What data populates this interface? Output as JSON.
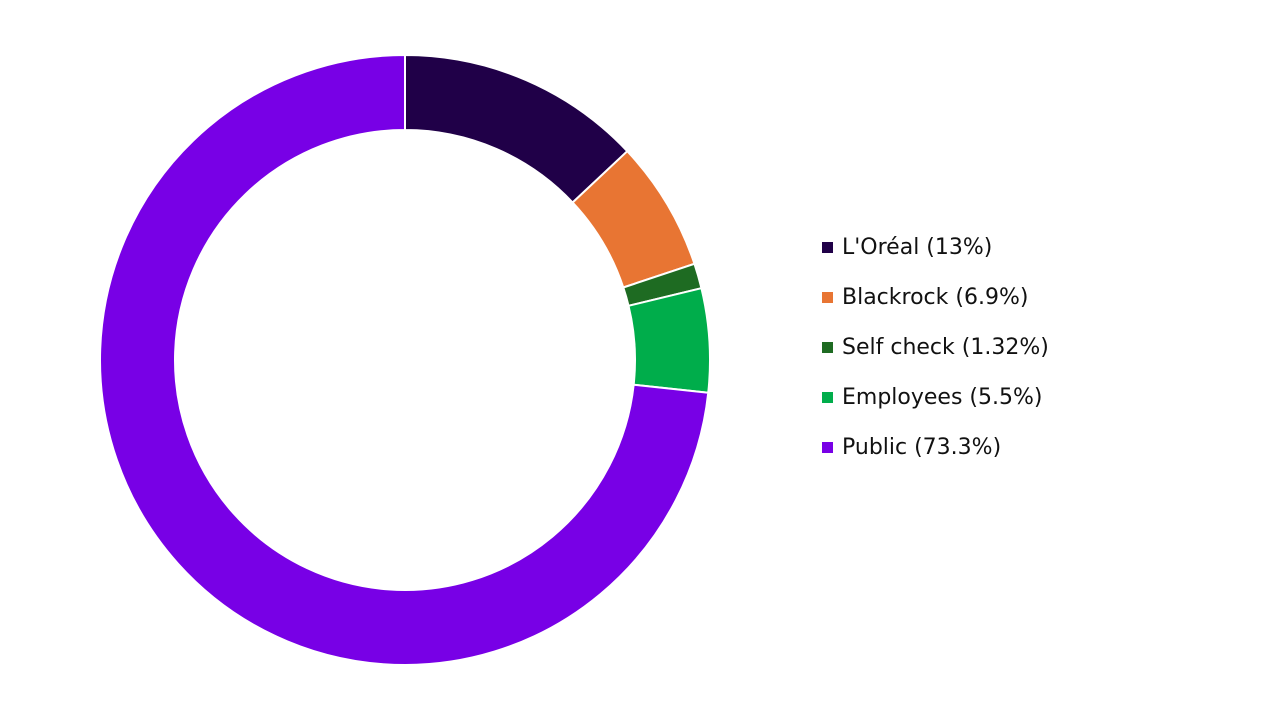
{
  "chart_data": {
    "type": "pie",
    "variant": "donut",
    "legend_position": "right",
    "series": [
      {
        "label": "L'Oréal (13%)",
        "value": 13,
        "color": "#200048"
      },
      {
        "label": "Blackrock (6.9%)",
        "value": 6.9,
        "color": "#e87533"
      },
      {
        "label": "Self check (1.32%)",
        "value": 1.32,
        "color": "#1e6b22"
      },
      {
        "label": "Employees (5.5%)",
        "value": 5.5,
        "color": "#00ad4b"
      },
      {
        "label": "Public (73.3%)",
        "value": 73.3,
        "color": "#7800e6"
      }
    ]
  }
}
